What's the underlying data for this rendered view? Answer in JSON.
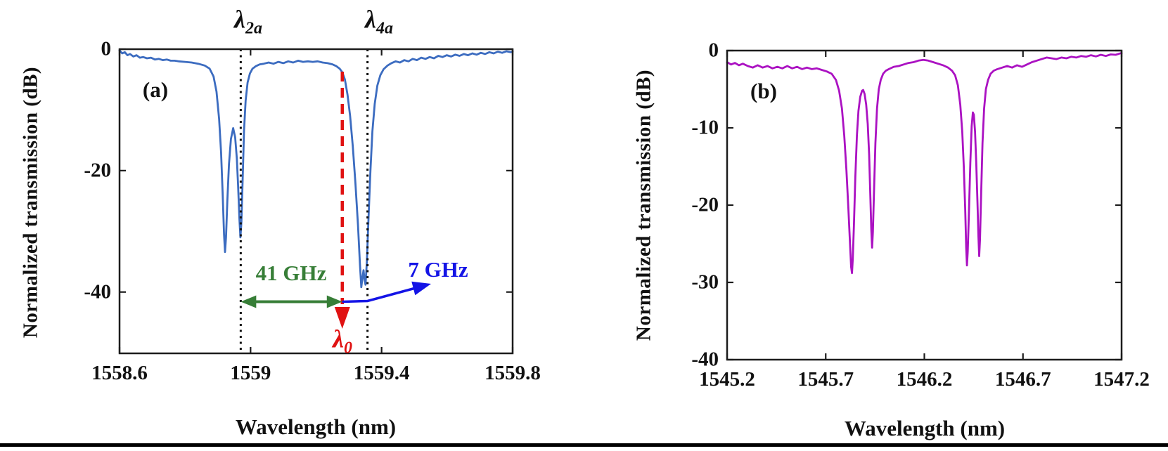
{
  "figure": {
    "bottom_border": true,
    "background": "#ffffff"
  },
  "chart_data": [
    {
      "type": "line",
      "panel_label": "(a)",
      "xlabel": "Wavelength (nm)",
      "ylabel": "Normalized transmission (dB)",
      "xlim": [
        1558.6,
        1559.8
      ],
      "ylim": [
        -50,
        0
      ],
      "xticks": [
        "1558.6",
        "1559",
        "1559.4",
        "1559.8"
      ],
      "xtick_values": [
        1558.6,
        1559.0,
        1559.4,
        1559.8
      ],
      "yticks": [
        "0",
        "-20",
        "-40"
      ],
      "ytick_values": [
        0,
        -20,
        -40
      ],
      "grid": false,
      "line_color": "#3c6cc0",
      "series": [
        {
          "name": "normalized transmission",
          "points": [
            [
              1558.6,
              -0.2
            ],
            [
              1558.608,
              -0.7
            ],
            [
              1558.616,
              -0.5
            ],
            [
              1558.624,
              -1.0
            ],
            [
              1558.632,
              -0.8
            ],
            [
              1558.642,
              -1.2
            ],
            [
              1558.652,
              -1.0
            ],
            [
              1558.662,
              -1.4
            ],
            [
              1558.672,
              -1.3
            ],
            [
              1558.684,
              -1.5
            ],
            [
              1558.696,
              -1.4
            ],
            [
              1558.708,
              -1.7
            ],
            [
              1558.72,
              -1.6
            ],
            [
              1558.732,
              -1.8
            ],
            [
              1558.744,
              -1.7
            ],
            [
              1558.756,
              -1.9
            ],
            [
              1558.768,
              -1.9
            ],
            [
              1558.78,
              -2.0
            ],
            [
              1558.8,
              -2.1
            ],
            [
              1558.82,
              -2.2
            ],
            [
              1558.84,
              -2.4
            ],
            [
              1558.86,
              -2.7
            ],
            [
              1558.875,
              -3.2
            ],
            [
              1558.887,
              -4.5
            ],
            [
              1558.896,
              -7.0
            ],
            [
              1558.904,
              -11.5
            ],
            [
              1558.91,
              -17.0
            ],
            [
              1558.915,
              -24.0
            ],
            [
              1558.919,
              -30.5
            ],
            [
              1558.922,
              -33.4
            ],
            [
              1558.925,
              -31.0
            ],
            [
              1558.929,
              -25.0
            ],
            [
              1558.934,
              -19.0
            ],
            [
              1558.94,
              -14.8
            ],
            [
              1558.947,
              -13.0
            ],
            [
              1558.953,
              -14.5
            ],
            [
              1558.958,
              -18.0
            ],
            [
              1558.962,
              -22.5
            ],
            [
              1558.966,
              -28.0
            ],
            [
              1558.969,
              -31.0
            ],
            [
              1558.972,
              -28.5
            ],
            [
              1558.976,
              -21.0
            ],
            [
              1558.98,
              -13.5
            ],
            [
              1558.985,
              -8.5
            ],
            [
              1558.991,
              -5.5
            ],
            [
              1558.998,
              -4.0
            ],
            [
              1559.006,
              -3.2
            ],
            [
              1559.016,
              -2.8
            ],
            [
              1559.028,
              -2.5
            ],
            [
              1559.04,
              -2.4
            ],
            [
              1559.055,
              -2.2
            ],
            [
              1559.07,
              -2.4
            ],
            [
              1559.085,
              -2.1
            ],
            [
              1559.1,
              -2.3
            ],
            [
              1559.115,
              -2.0
            ],
            [
              1559.13,
              -2.2
            ],
            [
              1559.145,
              -1.9
            ],
            [
              1559.16,
              -2.1
            ],
            [
              1559.175,
              -2.0
            ],
            [
              1559.19,
              -2.1
            ],
            [
              1559.205,
              -2.0
            ],
            [
              1559.22,
              -2.2
            ],
            [
              1559.235,
              -2.3
            ],
            [
              1559.25,
              -2.5
            ],
            [
              1559.262,
              -2.8
            ],
            [
              1559.272,
              -3.2
            ],
            [
              1559.28,
              -3.8
            ],
            [
              1559.288,
              -5.0
            ],
            [
              1559.296,
              -7.5
            ],
            [
              1559.304,
              -11.0
            ],
            [
              1559.312,
              -16.0
            ],
            [
              1559.32,
              -22.0
            ],
            [
              1559.328,
              -29.0
            ],
            [
              1559.334,
              -35.5
            ],
            [
              1559.338,
              -39.2
            ],
            [
              1559.342,
              -37.5
            ],
            [
              1559.345,
              -36.4
            ],
            [
              1559.348,
              -38.0
            ],
            [
              1559.351,
              -38.8
            ],
            [
              1559.355,
              -35.0
            ],
            [
              1559.36,
              -28.0
            ],
            [
              1559.366,
              -20.0
            ],
            [
              1559.372,
              -13.5
            ],
            [
              1559.379,
              -9.0
            ],
            [
              1559.387,
              -6.0
            ],
            [
              1559.396,
              -4.3
            ],
            [
              1559.406,
              -3.3
            ],
            [
              1559.418,
              -2.7
            ],
            [
              1559.43,
              -2.3
            ],
            [
              1559.443,
              -2.0
            ],
            [
              1559.456,
              -2.2
            ],
            [
              1559.469,
              -1.8
            ],
            [
              1559.482,
              -2.0
            ],
            [
              1559.495,
              -1.6
            ],
            [
              1559.508,
              -1.8
            ],
            [
              1559.521,
              -1.4
            ],
            [
              1559.534,
              -1.6
            ],
            [
              1559.547,
              -1.3
            ],
            [
              1559.56,
              -1.5
            ],
            [
              1559.573,
              -1.1
            ],
            [
              1559.586,
              -1.3
            ],
            [
              1559.599,
              -1.0
            ],
            [
              1559.612,
              -1.2
            ],
            [
              1559.625,
              -0.9
            ],
            [
              1559.638,
              -1.1
            ],
            [
              1559.651,
              -0.8
            ],
            [
              1559.664,
              -1.0
            ],
            [
              1559.677,
              -0.7
            ],
            [
              1559.69,
              -0.9
            ],
            [
              1559.703,
              -0.6
            ],
            [
              1559.716,
              -0.8
            ],
            [
              1559.729,
              -0.5
            ],
            [
              1559.742,
              -0.7
            ],
            [
              1559.755,
              -0.4
            ],
            [
              1559.768,
              -0.6
            ],
            [
              1559.781,
              -0.35
            ],
            [
              1559.794,
              -0.5
            ],
            [
              1559.8,
              -0.4
            ]
          ]
        }
      ],
      "annotations": {
        "lambda_2a": {
          "symbol": "λ",
          "subscript": "2a",
          "wavelength_nm": 1558.97,
          "line_style": "dotted",
          "color": "#111111"
        },
        "lambda_4a": {
          "symbol": "λ",
          "subscript": "4a",
          "wavelength_nm": 1559.357,
          "line_style": "dotted",
          "color": "#111111"
        },
        "lambda_0": {
          "symbol": "λ",
          "subscript": "0",
          "wavelength_nm": 1559.28,
          "line_style": "dashed",
          "color": "#e01212"
        },
        "spacing_41GHz": {
          "label": "41 GHz",
          "from_nm": 1558.97,
          "to_nm": 1559.28,
          "color": "#377e37"
        },
        "offset_7GHz": {
          "label": "7 GHz",
          "color": "#1414e6"
        }
      }
    },
    {
      "type": "line",
      "panel_label": "(b)",
      "xlabel": "Wavelength (nm)",
      "ylabel": "Normalized transmission (dB)",
      "xlim": [
        1545.2,
        1547.2
      ],
      "ylim": [
        -40,
        0
      ],
      "xticks": [
        "1545.2",
        "1545.7",
        "1546.2",
        "1546.7",
        "1547.2"
      ],
      "xtick_values": [
        1545.2,
        1545.7,
        1546.2,
        1546.7,
        1547.2
      ],
      "yticks": [
        "0",
        "-10",
        "-20",
        "-30",
        "-40"
      ],
      "ytick_values": [
        0,
        -10,
        -20,
        -30,
        -40
      ],
      "grid": false,
      "line_color": "#ab12c2",
      "series": [
        {
          "name": "normalized transmission",
          "points": [
            [
              1545.2,
              -1.5
            ],
            [
              1545.22,
              -1.8
            ],
            [
              1545.24,
              -1.6
            ],
            [
              1545.26,
              -1.9
            ],
            [
              1545.28,
              -1.7
            ],
            [
              1545.305,
              -2.0
            ],
            [
              1545.33,
              -2.2
            ],
            [
              1545.355,
              -1.9
            ],
            [
              1545.38,
              -2.2
            ],
            [
              1545.405,
              -2.0
            ],
            [
              1545.43,
              -2.3
            ],
            [
              1545.455,
              -2.1
            ],
            [
              1545.48,
              -2.3
            ],
            [
              1545.505,
              -2.0
            ],
            [
              1545.53,
              -2.3
            ],
            [
              1545.555,
              -2.1
            ],
            [
              1545.58,
              -2.4
            ],
            [
              1545.605,
              -2.2
            ],
            [
              1545.63,
              -2.4
            ],
            [
              1545.655,
              -2.3
            ],
            [
              1545.68,
              -2.5
            ],
            [
              1545.705,
              -2.7
            ],
            [
              1545.73,
              -3.0
            ],
            [
              1545.752,
              -3.8
            ],
            [
              1545.768,
              -5.2
            ],
            [
              1545.782,
              -7.5
            ],
            [
              1545.794,
              -11.0
            ],
            [
              1545.805,
              -15.5
            ],
            [
              1545.815,
              -20.5
            ],
            [
              1545.823,
              -25.0
            ],
            [
              1545.829,
              -28.0
            ],
            [
              1545.833,
              -28.8
            ],
            [
              1545.837,
              -27.0
            ],
            [
              1545.843,
              -22.5
            ],
            [
              1545.85,
              -16.5
            ],
            [
              1545.858,
              -11.0
            ],
            [
              1545.866,
              -7.8
            ],
            [
              1545.875,
              -6.0
            ],
            [
              1545.884,
              -5.2
            ],
            [
              1545.89,
              -5.1
            ],
            [
              1545.897,
              -5.6
            ],
            [
              1545.905,
              -7.0
            ],
            [
              1545.913,
              -9.5
            ],
            [
              1545.92,
              -13.5
            ],
            [
              1545.926,
              -18.5
            ],
            [
              1545.931,
              -23.0
            ],
            [
              1545.935,
              -25.5
            ],
            [
              1545.939,
              -23.5
            ],
            [
              1545.945,
              -18.0
            ],
            [
              1545.952,
              -12.0
            ],
            [
              1545.96,
              -7.5
            ],
            [
              1545.969,
              -5.0
            ],
            [
              1545.979,
              -3.8
            ],
            [
              1545.991,
              -3.0
            ],
            [
              1546.005,
              -2.6
            ],
            [
              1546.02,
              -2.4
            ],
            [
              1546.045,
              -2.1
            ],
            [
              1546.07,
              -2.0
            ],
            [
              1546.095,
              -1.8
            ],
            [
              1546.12,
              -1.6
            ],
            [
              1546.145,
              -1.5
            ],
            [
              1546.17,
              -1.3
            ],
            [
              1546.195,
              -1.2
            ],
            [
              1546.22,
              -1.3
            ],
            [
              1546.245,
              -1.5
            ],
            [
              1546.27,
              -1.7
            ],
            [
              1546.295,
              -1.9
            ],
            [
              1546.32,
              -2.2
            ],
            [
              1546.34,
              -2.6
            ],
            [
              1546.356,
              -3.2
            ],
            [
              1546.37,
              -4.5
            ],
            [
              1546.382,
              -7.0
            ],
            [
              1546.392,
              -10.5
            ],
            [
              1546.4,
              -15.0
            ],
            [
              1546.407,
              -20.5
            ],
            [
              1546.412,
              -25.5
            ],
            [
              1546.416,
              -27.8
            ],
            [
              1546.42,
              -26.0
            ],
            [
              1546.426,
              -21.0
            ],
            [
              1546.433,
              -14.5
            ],
            [
              1546.44,
              -9.8
            ],
            [
              1546.446,
              -8.0
            ],
            [
              1546.451,
              -8.3
            ],
            [
              1546.457,
              -10.5
            ],
            [
              1546.463,
              -14.5
            ],
            [
              1546.469,
              -19.5
            ],
            [
              1546.474,
              -24.0
            ],
            [
              1546.478,
              -26.6
            ],
            [
              1546.482,
              -24.5
            ],
            [
              1546.488,
              -18.5
            ],
            [
              1546.495,
              -12.0
            ],
            [
              1546.503,
              -7.5
            ],
            [
              1546.512,
              -5.0
            ],
            [
              1546.523,
              -3.8
            ],
            [
              1546.536,
              -3.0
            ],
            [
              1546.552,
              -2.6
            ],
            [
              1546.57,
              -2.4
            ],
            [
              1546.595,
              -2.2
            ],
            [
              1546.62,
              -2.0
            ],
            [
              1546.645,
              -2.2
            ],
            [
              1546.67,
              -1.9
            ],
            [
              1546.695,
              -2.1
            ],
            [
              1546.72,
              -1.8
            ],
            [
              1546.745,
              -1.5
            ],
            [
              1546.77,
              -1.3
            ],
            [
              1546.795,
              -1.1
            ],
            [
              1546.82,
              -0.9
            ],
            [
              1546.845,
              -1.0
            ],
            [
              1546.87,
              -1.1
            ],
            [
              1546.895,
              -0.9
            ],
            [
              1546.92,
              -1.0
            ],
            [
              1546.945,
              -0.8
            ],
            [
              1546.97,
              -0.9
            ],
            [
              1546.995,
              -0.7
            ],
            [
              1547.02,
              -0.8
            ],
            [
              1547.045,
              -0.6
            ],
            [
              1547.07,
              -0.75
            ],
            [
              1547.095,
              -0.55
            ],
            [
              1547.12,
              -0.7
            ],
            [
              1547.145,
              -0.5
            ],
            [
              1547.17,
              -0.55
            ],
            [
              1547.195,
              -0.35
            ],
            [
              1547.2,
              -0.35
            ]
          ]
        }
      ],
      "annotations": {}
    }
  ]
}
